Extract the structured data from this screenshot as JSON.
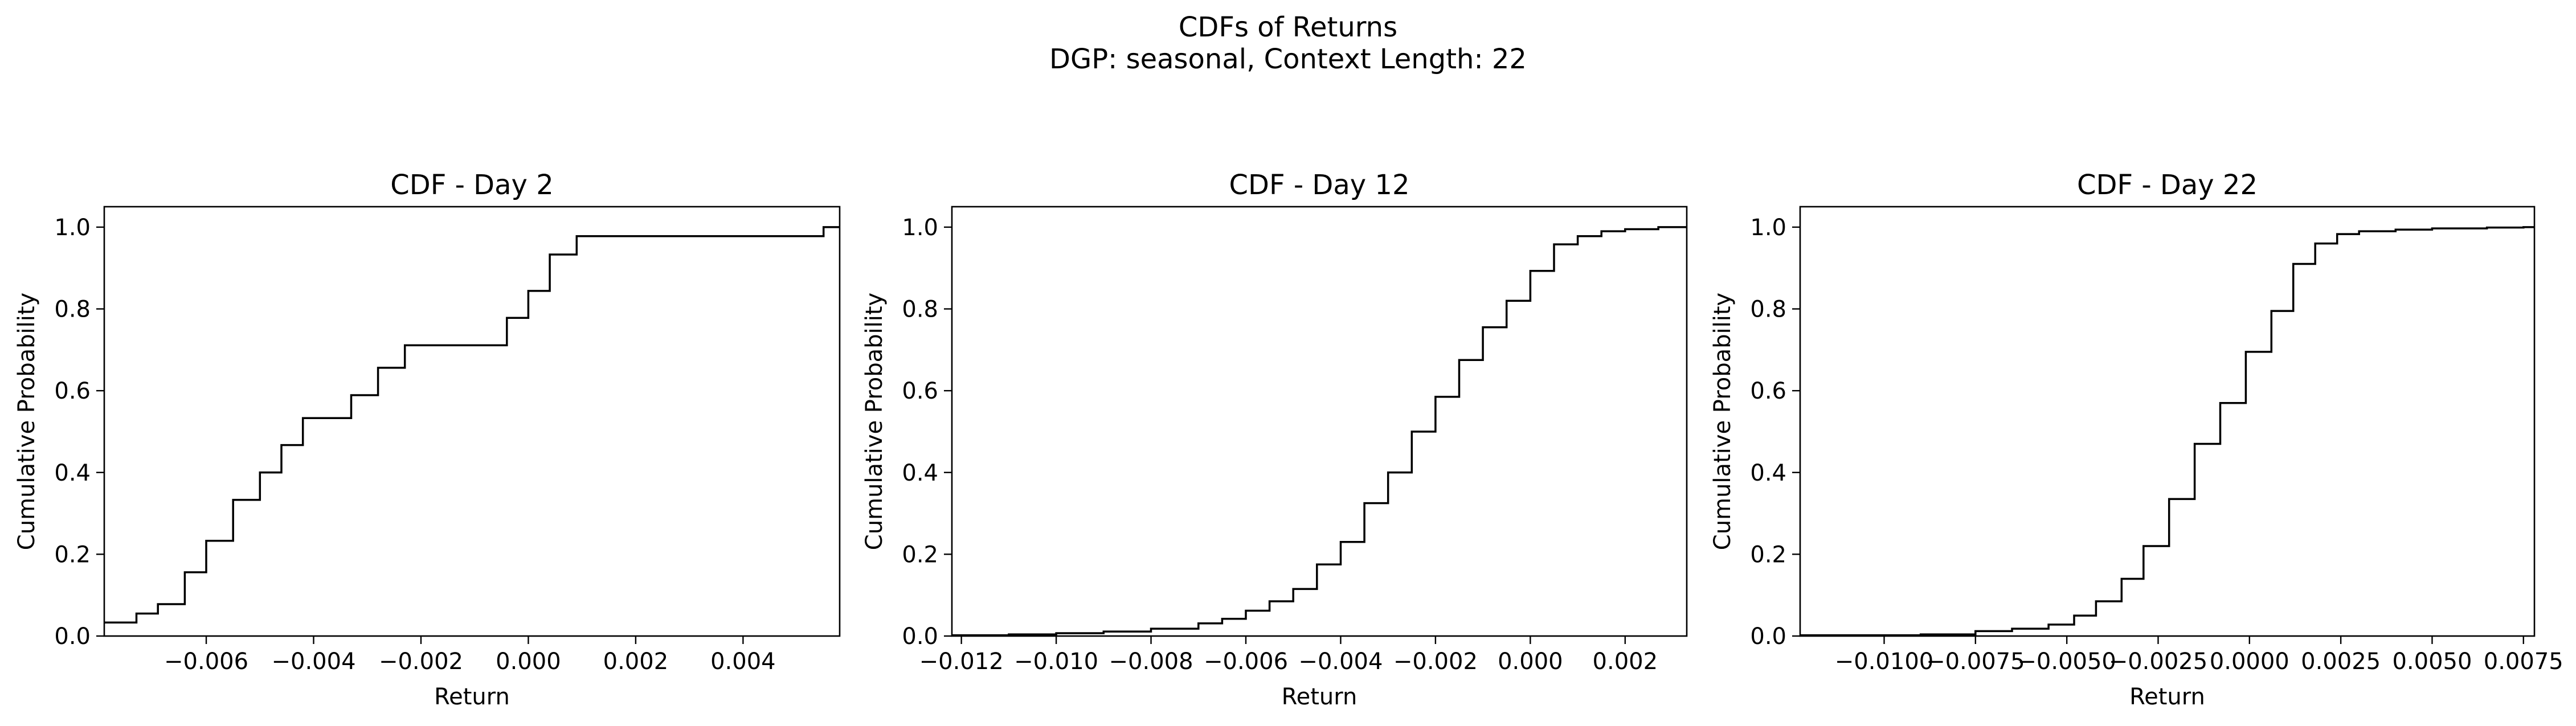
{
  "figure": {
    "title": "CDFs of Returns",
    "subtitle": "DGP: seasonal, Context Length: 22"
  },
  "chart_data": [
    {
      "type": "line",
      "step": "post",
      "title": "CDF - Day 2",
      "xlabel": "Return",
      "ylabel": "Cumulative Probability",
      "xlim": [
        -0.0079,
        0.0058
      ],
      "ylim": [
        0.0,
        1.05
      ],
      "xticks": [
        -0.006,
        -0.004,
        -0.002,
        0.0,
        0.002,
        0.004
      ],
      "xtick_labels": [
        "−0.006",
        "−0.004",
        "−0.002",
        "0.000",
        "0.002",
        "0.004"
      ],
      "yticks": [
        0.0,
        0.2,
        0.4,
        0.6,
        0.8,
        1.0
      ],
      "ytick_labels": [
        "0.0",
        "0.2",
        "0.4",
        "0.6",
        "0.8",
        "1.0"
      ],
      "grid": false,
      "color": "#000000",
      "x": [
        -0.0079,
        -0.0073,
        -0.0069,
        -0.0064,
        -0.006,
        -0.0055,
        -0.005,
        -0.0046,
        -0.0042,
        -0.0033,
        -0.0028,
        -0.0023,
        -0.0004,
        0.0,
        0.0004,
        0.0009,
        0.0055,
        0.0058
      ],
      "y": [
        0.033,
        0.055,
        0.078,
        0.156,
        0.233,
        0.333,
        0.4,
        0.467,
        0.533,
        0.589,
        0.656,
        0.711,
        0.778,
        0.844,
        0.933,
        0.978,
        1.0,
        1.0
      ]
    },
    {
      "type": "line",
      "step": "post",
      "title": "CDF - Day 12",
      "xlabel": "Return",
      "ylabel": "Cumulative Probability",
      "xlim": [
        -0.0122,
        0.0033
      ],
      "ylim": [
        0.0,
        1.05
      ],
      "xticks": [
        -0.012,
        -0.01,
        -0.008,
        -0.006,
        -0.004,
        -0.002,
        0.0,
        0.002
      ],
      "xtick_labels": [
        "−0.012",
        "−0.010",
        "−0.008",
        "−0.006",
        "−0.004",
        "−0.002",
        "0.000",
        "0.002"
      ],
      "yticks": [
        0.0,
        0.2,
        0.4,
        0.6,
        0.8,
        1.0
      ],
      "ytick_labels": [
        "0.0",
        "0.2",
        "0.4",
        "0.6",
        "0.8",
        "1.0"
      ],
      "grid": false,
      "color": "#000000",
      "x": [
        -0.0122,
        -0.011,
        -0.01,
        -0.009,
        -0.008,
        -0.007,
        -0.0065,
        -0.006,
        -0.0055,
        -0.005,
        -0.0045,
        -0.004,
        -0.0035,
        -0.003,
        -0.0025,
        -0.002,
        -0.0015,
        -0.001,
        -0.0005,
        0.0,
        0.0005,
        0.001,
        0.0015,
        0.002,
        0.0027,
        0.0033
      ],
      "y": [
        0.002,
        0.004,
        0.007,
        0.011,
        0.018,
        0.031,
        0.042,
        0.062,
        0.085,
        0.115,
        0.175,
        0.23,
        0.325,
        0.4,
        0.5,
        0.585,
        0.675,
        0.755,
        0.82,
        0.893,
        0.958,
        0.978,
        0.99,
        0.995,
        1.0,
        1.0
      ]
    },
    {
      "type": "line",
      "step": "post",
      "title": "CDF - Day 22",
      "xlabel": "Return",
      "ylabel": "Cumulative Probability",
      "xlim": [
        -0.0123,
        0.0078
      ],
      "ylim": [
        0.0,
        1.05
      ],
      "xticks": [
        -0.01,
        -0.0075,
        -0.005,
        -0.0025,
        0.0,
        0.0025,
        0.005,
        0.0075
      ],
      "xtick_labels": [
        "−0.0100",
        "−0.0075",
        "−0.0050",
        "−0.0025",
        "0.0000",
        "0.0025",
        "0.0050",
        "0.0075"
      ],
      "yticks": [
        0.0,
        0.2,
        0.4,
        0.6,
        0.8,
        1.0
      ],
      "ytick_labels": [
        "0.0",
        "0.2",
        "0.4",
        "0.6",
        "0.8",
        "1.0"
      ],
      "grid": false,
      "color": "#000000",
      "x": [
        -0.0123,
        -0.009,
        -0.0075,
        -0.0065,
        -0.0055,
        -0.0048,
        -0.0042,
        -0.0035,
        -0.0029,
        -0.0022,
        -0.0015,
        -0.0008,
        -0.0001,
        0.0006,
        0.0012,
        0.0018,
        0.0024,
        0.003,
        0.004,
        0.005,
        0.0065,
        0.0075,
        0.0078
      ],
      "y": [
        0.002,
        0.004,
        0.012,
        0.018,
        0.028,
        0.05,
        0.085,
        0.14,
        0.22,
        0.335,
        0.47,
        0.57,
        0.695,
        0.795,
        0.91,
        0.96,
        0.983,
        0.99,
        0.994,
        0.997,
        0.999,
        1.0,
        1.0
      ]
    }
  ]
}
